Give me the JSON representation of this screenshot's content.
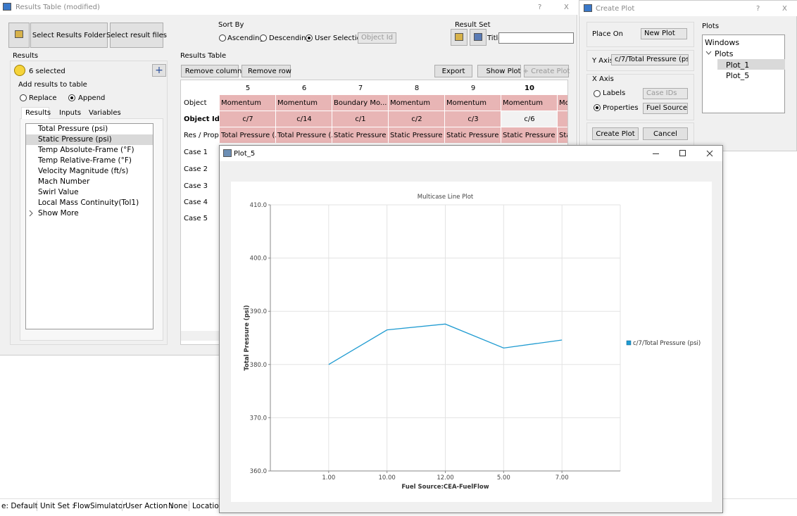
{
  "main_window": {
    "title": "Results Table (modified)",
    "help": "?",
    "close": "X"
  },
  "toolbar": {
    "select_folder": "Select Results Folder",
    "select_files": "Select result files",
    "sort_by": "Sort By",
    "sort_options": [
      "Ascending",
      "Descending",
      "User Selection"
    ],
    "sort_field": "Object Id",
    "result_set": "Result Set",
    "title_label": "Title"
  },
  "results_panel": {
    "heading": "Results",
    "selected": "6 selected",
    "add": "+",
    "add_label": "Add results to table",
    "modes": [
      "Replace",
      "Append"
    ],
    "tabs": [
      "Results",
      "Inputs",
      "Variables"
    ],
    "items": [
      "Total Pressure (psi)",
      "Static Pressure (psi)",
      "Temp Absolute-Frame (°F)",
      "Temp Relative-Frame (°F)",
      "Velocity Magnitude (ft/s)",
      "Mach Number",
      "Swirl Value",
      "Local Mass Continuity(Tol1)"
    ],
    "show_more": "Show More"
  },
  "results_table": {
    "heading": "Results Table",
    "remove_column": "Remove column",
    "remove_row": "Remove row",
    "export": "Export",
    "show_plot": "Show Plot",
    "create_plot": "+ Create Plot",
    "columns": [
      "5",
      "6",
      "7",
      "8",
      "9",
      "10"
    ],
    "rows": [
      {
        "label": "Object",
        "cells": [
          "Momentum",
          "Momentum",
          "Boundary Mo...",
          "Momentum",
          "Momentum",
          "Momentum",
          "Mc"
        ]
      },
      {
        "label": "Object Id",
        "cells": [
          "c/7",
          "c/14",
          "c/1",
          "c/2",
          "c/3",
          "c/6"
        ]
      },
      {
        "label": "Res / Prop",
        "cells": [
          "Total Pressure (...",
          "Total Pressure (...",
          "Static Pressure ...",
          "Static Pressure ...",
          "Static Pressure ...",
          "Static Pressure ...",
          "Sta"
        ]
      },
      {
        "label": "Case 1"
      },
      {
        "label": "Case 2"
      },
      {
        "label": "Case 3"
      },
      {
        "label": "Case 4"
      },
      {
        "label": "Case 5"
      }
    ]
  },
  "create_plot": {
    "title": "Create Plot",
    "help": "?",
    "close": "X",
    "place_on_label": "Place On",
    "place_on": "New Plot",
    "y_axis_label": "Y Axis",
    "y_axis": "c/7/Total Pressure (psi)",
    "x_axis_label": "X Axis",
    "x_options": [
      "Labels",
      "Properties"
    ],
    "labels_value": "Case IDs",
    "properties_value": "Fuel Source:",
    "create": "Create Plot",
    "cancel": "Cancel",
    "plots_heading": "Plots",
    "tree_root": "Windows",
    "tree_group": "Plots",
    "tree_items": [
      "Plot_1",
      "Plot_5"
    ]
  },
  "plot_window": {
    "title": "Plot_5"
  },
  "chart_data": {
    "type": "line",
    "title": "Multicase Line Plot",
    "y_label": "Total Pressure (psi)",
    "x_label": "Fuel Source:CEA-FuelFlow",
    "categories": [
      "1.00",
      "10.00",
      "12.00",
      "5.00",
      "7.00"
    ],
    "series": [
      {
        "name": "c/7/Total Pressure (psi)",
        "color": "#1f9bd1",
        "values": [
          380.0,
          386.5,
          387.6,
          383.1,
          384.6
        ]
      }
    ],
    "ylim": [
      360,
      410
    ],
    "yticks": [
      {
        "value": 360,
        "label": "360.0"
      },
      {
        "value": 370,
        "label": "370.0"
      },
      {
        "value": 380,
        "label": "380.0"
      },
      {
        "value": 390,
        "label": "390.0"
      },
      {
        "value": 400,
        "label": "400.0"
      },
      {
        "value": 410,
        "label": "410.0"
      }
    ],
    "grid": true,
    "legend": "right"
  },
  "status_bar": [
    "e: Default",
    "Unit Set :",
    "FlowSimulator",
    "User Action :",
    "None",
    "Location"
  ]
}
